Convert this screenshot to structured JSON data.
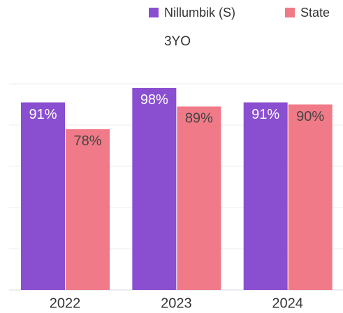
{
  "chart_data": {
    "type": "bar",
    "title": "3YO",
    "categories": [
      "2022",
      "2023",
      "2024"
    ],
    "series": [
      {
        "name": "Nillumbik (S)",
        "color": "#8a4fd0",
        "values": [
          91,
          98,
          91
        ],
        "value_labels": [
          "91%",
          "98%",
          "91%"
        ]
      },
      {
        "name": "State",
        "color": "#f07a87",
        "values": [
          78,
          89,
          90
        ],
        "value_labels": [
          "78%",
          "89%",
          "90%"
        ]
      }
    ],
    "ylim": [
      0,
      100
    ],
    "yticks": [
      0,
      20,
      40,
      60,
      80,
      100
    ],
    "grid": true,
    "legend": "top-right"
  }
}
